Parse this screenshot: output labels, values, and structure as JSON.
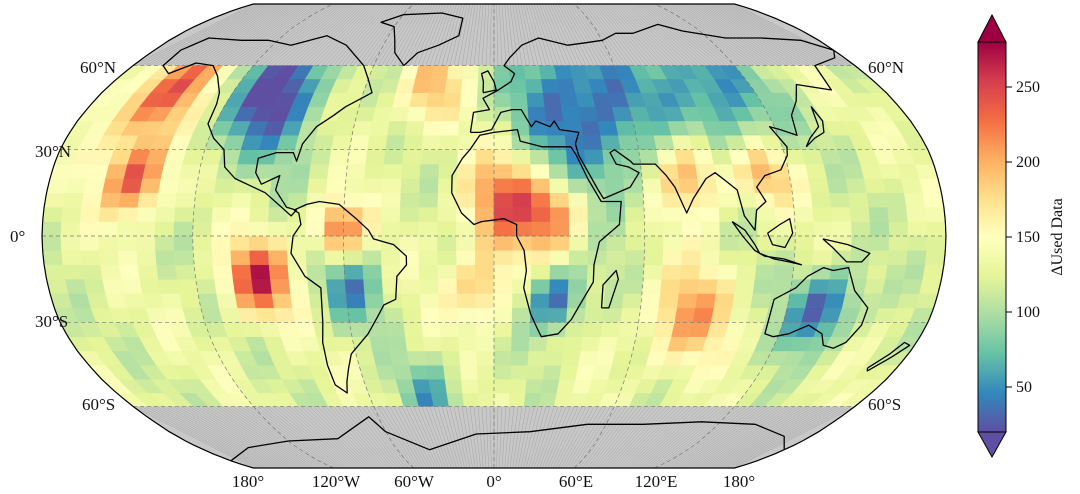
{
  "map": {
    "projection": "Robinson",
    "lat_labels_left": [
      "60°N",
      "30°N",
      "0°",
      "30°S",
      "60°S"
    ],
    "lat_labels_right": [
      "60°N",
      "60°S"
    ],
    "lon_labels": [
      "180°",
      "120°W",
      "60°W",
      "0°",
      "60°E",
      "120°E",
      "180°"
    ],
    "ocean_no_data_color": "#c8c8c8",
    "coastline_color": "#000000",
    "gridline_style": "dashed-gray",
    "data_lat_range": [
      -60,
      60
    ]
  },
  "colorbar": {
    "title": "ΔUsed Data",
    "ticks": [
      "50",
      "100",
      "150",
      "200",
      "250"
    ],
    "range": [
      20,
      280
    ],
    "colormap": "Spectral_r",
    "extend": "both",
    "colors": [
      "#5e4fa2",
      "#3288bd",
      "#66c2a5",
      "#abdda4",
      "#e6f598",
      "#ffffbf",
      "#fee08b",
      "#fdae61",
      "#f46d43",
      "#d53e4f",
      "#9e0142"
    ]
  }
}
